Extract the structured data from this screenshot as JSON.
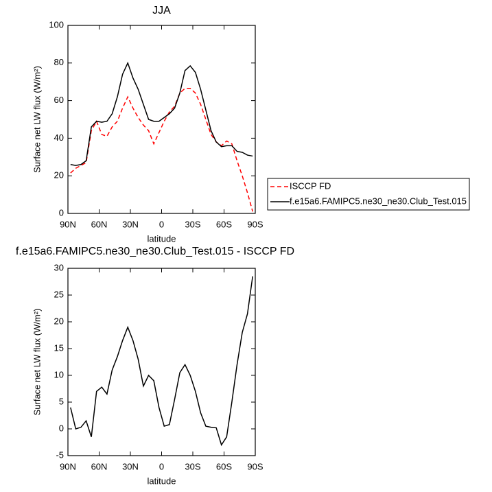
{
  "chart_data": [
    {
      "type": "line",
      "title": "JJA",
      "xlabel": "latitude",
      "ylabel": "Surface net LW flux (W/m²)",
      "x": [
        87.5,
        82.5,
        77.5,
        72.5,
        67.5,
        62.5,
        57.5,
        52.5,
        47.5,
        42.5,
        37.5,
        32.5,
        27.5,
        22.5,
        17.5,
        12.5,
        7.5,
        2.5,
        -2.5,
        -7.5,
        -12.5,
        -17.5,
        -22.5,
        -27.5,
        -32.5,
        -37.5,
        -42.5,
        -47.5,
        -52.5,
        -57.5,
        -62.5,
        -67.5,
        -72.5,
        -77.5,
        -82.5,
        -87.5
      ],
      "series": [
        {
          "name": "ISCCP FD",
          "color": "#ff0000",
          "dashed": true,
          "values": [
            21.5,
            24,
            25.5,
            27,
            44,
            49,
            42,
            41,
            46,
            49,
            56,
            62,
            56,
            51,
            47,
            44,
            37,
            43,
            49,
            54,
            57,
            64,
            66.5,
            66.5,
            64,
            58,
            50,
            42,
            38,
            36,
            38.5,
            37,
            28,
            20,
            11,
            1
          ]
        },
        {
          "name": "f.e15a6.FAMIPC5.ne30_ne30.Club_Test.015",
          "color": "#000000",
          "dashed": false,
          "values": [
            26,
            25.5,
            26,
            28,
            46,
            49,
            48.5,
            49,
            53,
            62,
            74,
            80,
            72,
            66,
            58,
            50,
            49,
            49,
            51,
            53,
            56,
            64,
            76,
            78.5,
            75,
            66,
            55,
            44,
            38,
            35.5,
            36,
            36,
            33,
            32.5,
            31,
            30.5
          ]
        }
      ],
      "xlim": [
        90,
        -90
      ],
      "xticks": [
        {
          "value": 90,
          "label": "90N"
        },
        {
          "value": 60,
          "label": "60N"
        },
        {
          "value": 30,
          "label": "30N"
        },
        0,
        {
          "value": -30,
          "label": "30S"
        },
        {
          "value": -60,
          "label": "60S"
        },
        {
          "value": -90,
          "label": "90S"
        }
      ],
      "ylim": [
        0,
        100
      ],
      "yticks": [
        0,
        20,
        40,
        60,
        80,
        100
      ],
      "legend": "outside-right"
    },
    {
      "type": "line",
      "title": "f.e15a6.FAMIPC5.ne30_ne30.Club_Test.015 - ISCCP FD",
      "xlabel": "latitude",
      "ylabel": "Surface net LW flux (W/m²)",
      "x": [
        87.5,
        82.5,
        77.5,
        72.5,
        67.5,
        62.5,
        57.5,
        52.5,
        47.5,
        42.5,
        37.5,
        32.5,
        27.5,
        22.5,
        17.5,
        12.5,
        7.5,
        2.5,
        -2.5,
        -7.5,
        -12.5,
        -17.5,
        -22.5,
        -27.5,
        -32.5,
        -37.5,
        -42.5,
        -47.5,
        -52.5,
        -57.5,
        -62.5,
        -67.5,
        -72.5,
        -77.5,
        -82.5,
        -87.5
      ],
      "values": [
        4,
        0,
        0.3,
        1.5,
        -1.5,
        7,
        7.8,
        6.5,
        11,
        13.5,
        16.5,
        19,
        16.5,
        13,
        8,
        10,
        9,
        4,
        0.5,
        0.8,
        5.5,
        10.5,
        12,
        10,
        7,
        3,
        0.5,
        0.3,
        0.2,
        -3,
        -1.5,
        5,
        12,
        18,
        21.5,
        28.5
      ],
      "color": "#000000",
      "xlim": [
        90,
        -90
      ],
      "xticks": [
        {
          "value": 90,
          "label": "90N"
        },
        {
          "value": 60,
          "label": "60N"
        },
        {
          "value": 30,
          "label": "30N"
        },
        0,
        {
          "value": -30,
          "label": "30S"
        },
        {
          "value": -60,
          "label": "60S"
        },
        {
          "value": -90,
          "label": "90S"
        }
      ],
      "ylim": [
        -5,
        30
      ],
      "yticks": [
        -5,
        0,
        5,
        10,
        15,
        20,
        25,
        30
      ]
    }
  ]
}
